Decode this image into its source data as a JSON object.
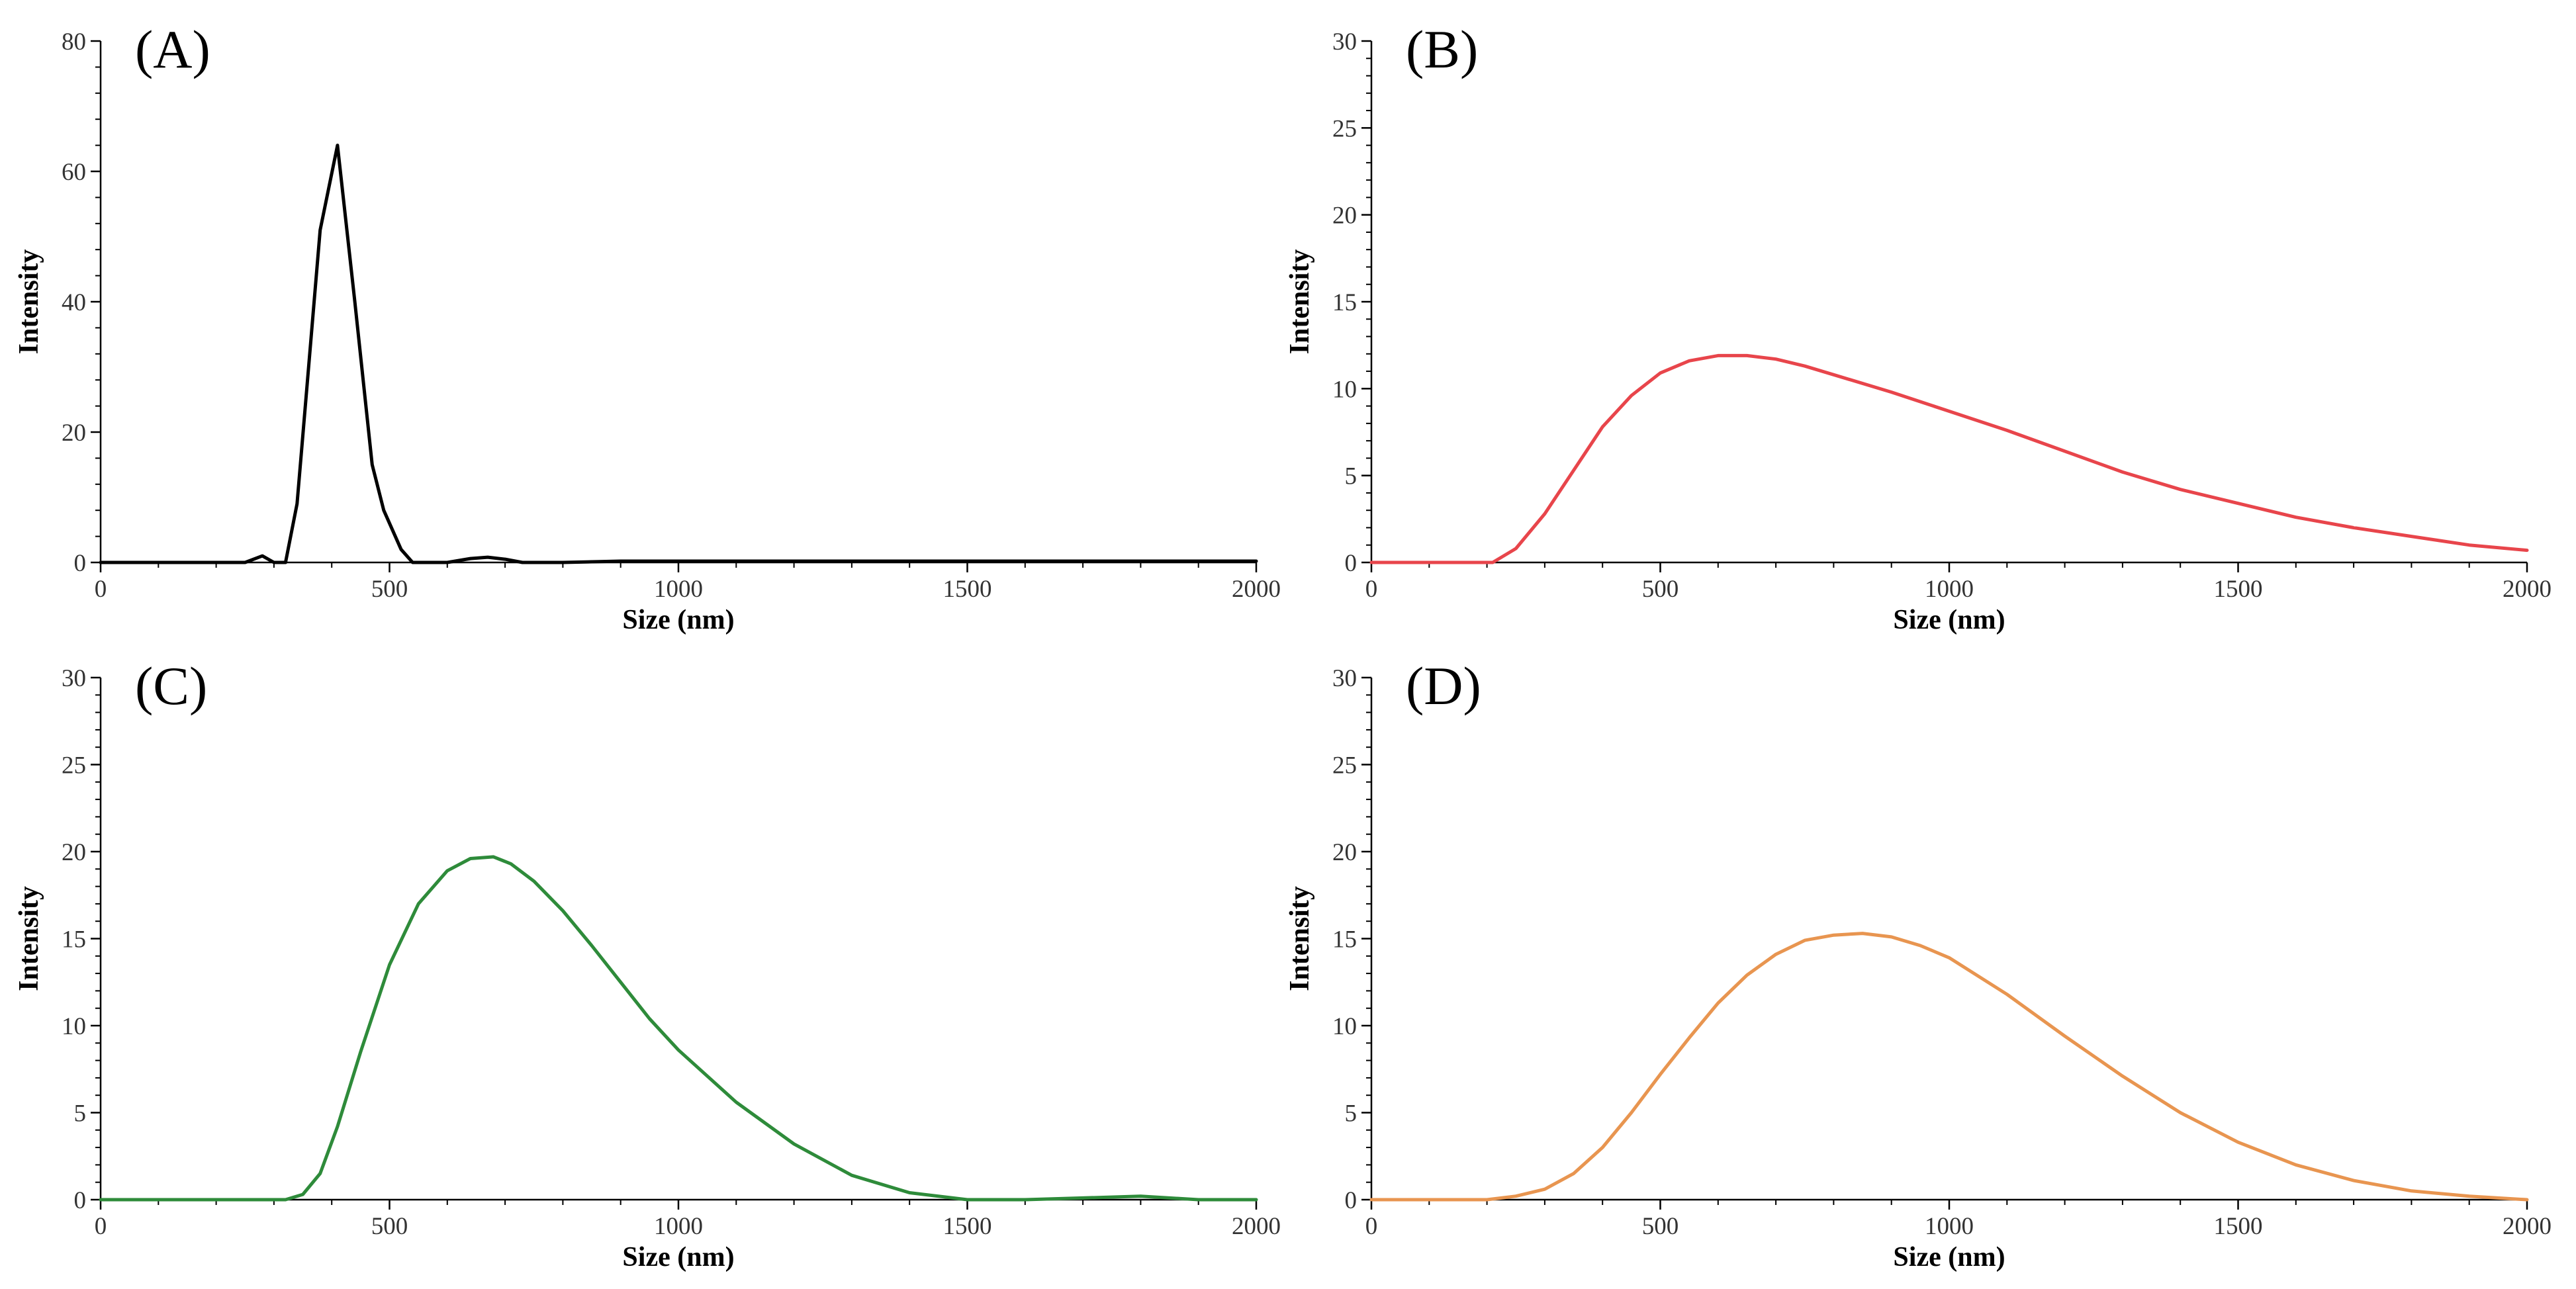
{
  "chart_data": [
    {
      "type": "line",
      "panel_label": "(A)",
      "xlabel": "Size (nm)",
      "ylabel": "Intensity",
      "xlim": [
        0,
        2000
      ],
      "ylim": [
        0,
        80
      ],
      "x_ticks": [
        0,
        500,
        1000,
        1500,
        2000
      ],
      "y_ticks": [
        0,
        20,
        40,
        60,
        80
      ],
      "grid": false,
      "series": [
        {
          "name": "A",
          "color": "#000000",
          "x": [
            0,
            100,
            200,
            250,
            280,
            300,
            320,
            340,
            360,
            380,
            410,
            440,
            470,
            490,
            520,
            540,
            560,
            600,
            640,
            670,
            700,
            730,
            800,
            900,
            1000,
            1200,
            1500,
            1800,
            2000
          ],
          "y": [
            0,
            0,
            0,
            0,
            1,
            0,
            0,
            9,
            30,
            51,
            64,
            40,
            15,
            8,
            2,
            0,
            0,
            0,
            0.6,
            0.8,
            0.5,
            0,
            0,
            0.2,
            0.2,
            0.2,
            0.2,
            0.2,
            0.2
          ]
        }
      ]
    },
    {
      "type": "line",
      "panel_label": "(B)",
      "xlabel": "Size (nm)",
      "ylabel": "Intensity",
      "xlim": [
        0,
        2000
      ],
      "ylim": [
        0,
        30
      ],
      "x_ticks": [
        0,
        500,
        1000,
        1500,
        2000
      ],
      "y_ticks": [
        0,
        5,
        10,
        15,
        20,
        25,
        30
      ],
      "grid": false,
      "series": [
        {
          "name": "B",
          "color": "#e8454b",
          "x": [
            0,
            200,
            210,
            250,
            300,
            350,
            400,
            450,
            500,
            550,
            600,
            650,
            700,
            750,
            800,
            900,
            1000,
            1100,
            1200,
            1300,
            1400,
            1500,
            1600,
            1700,
            1800,
            1900,
            2000
          ],
          "y": [
            0,
            0,
            0,
            0.8,
            2.8,
            5.3,
            7.8,
            9.6,
            10.9,
            11.6,
            11.9,
            11.9,
            11.7,
            11.3,
            10.8,
            9.8,
            8.7,
            7.6,
            6.4,
            5.2,
            4.2,
            3.4,
            2.6,
            2.0,
            1.5,
            1.0,
            0.7
          ]
        }
      ]
    },
    {
      "type": "line",
      "panel_label": "(C)",
      "xlabel": "Size (nm)",
      "ylabel": "Intensity",
      "xlim": [
        0,
        2000
      ],
      "ylim": [
        0,
        30
      ],
      "x_ticks": [
        0,
        500,
        1000,
        1500,
        2000
      ],
      "y_ticks": [
        0,
        5,
        10,
        15,
        20,
        25,
        30
      ],
      "grid": false,
      "series": [
        {
          "name": "C",
          "color": "#2e8b3a",
          "x": [
            0,
            280,
            320,
            350,
            380,
            410,
            450,
            500,
            550,
            600,
            640,
            680,
            710,
            750,
            800,
            850,
            900,
            950,
            1000,
            1100,
            1200,
            1300,
            1400,
            1500,
            1600,
            1700,
            1800,
            1900,
            2000
          ],
          "y": [
            0,
            0,
            0,
            0.3,
            1.5,
            4.2,
            8.5,
            13.5,
            17,
            18.9,
            19.6,
            19.7,
            19.3,
            18.3,
            16.6,
            14.6,
            12.5,
            10.4,
            8.6,
            5.6,
            3.2,
            1.4,
            0.4,
            0,
            0,
            0.1,
            0.2,
            0,
            0
          ]
        }
      ]
    },
    {
      "type": "line",
      "panel_label": "(D)",
      "xlabel": "Size (nm)",
      "ylabel": "Intensity",
      "xlim": [
        0,
        2000
      ],
      "ylim": [
        0,
        30
      ],
      "x_ticks": [
        0,
        500,
        1000,
        1500,
        2000
      ],
      "y_ticks": [
        0,
        5,
        10,
        15,
        20,
        25,
        30
      ],
      "grid": false,
      "series": [
        {
          "name": "D",
          "color": "#e89550",
          "x": [
            0,
            200,
            250,
            300,
            350,
            400,
            450,
            500,
            550,
            600,
            650,
            700,
            750,
            800,
            850,
            900,
            950,
            1000,
            1100,
            1200,
            1300,
            1400,
            1500,
            1600,
            1700,
            1800,
            1900,
            2000
          ],
          "y": [
            0,
            0,
            0.2,
            0.6,
            1.5,
            3.0,
            5.0,
            7.2,
            9.3,
            11.3,
            12.9,
            14.1,
            14.9,
            15.2,
            15.3,
            15.1,
            14.6,
            13.9,
            11.8,
            9.4,
            7.1,
            5.0,
            3.3,
            2.0,
            1.1,
            0.5,
            0.2,
            0
          ]
        }
      ]
    }
  ]
}
